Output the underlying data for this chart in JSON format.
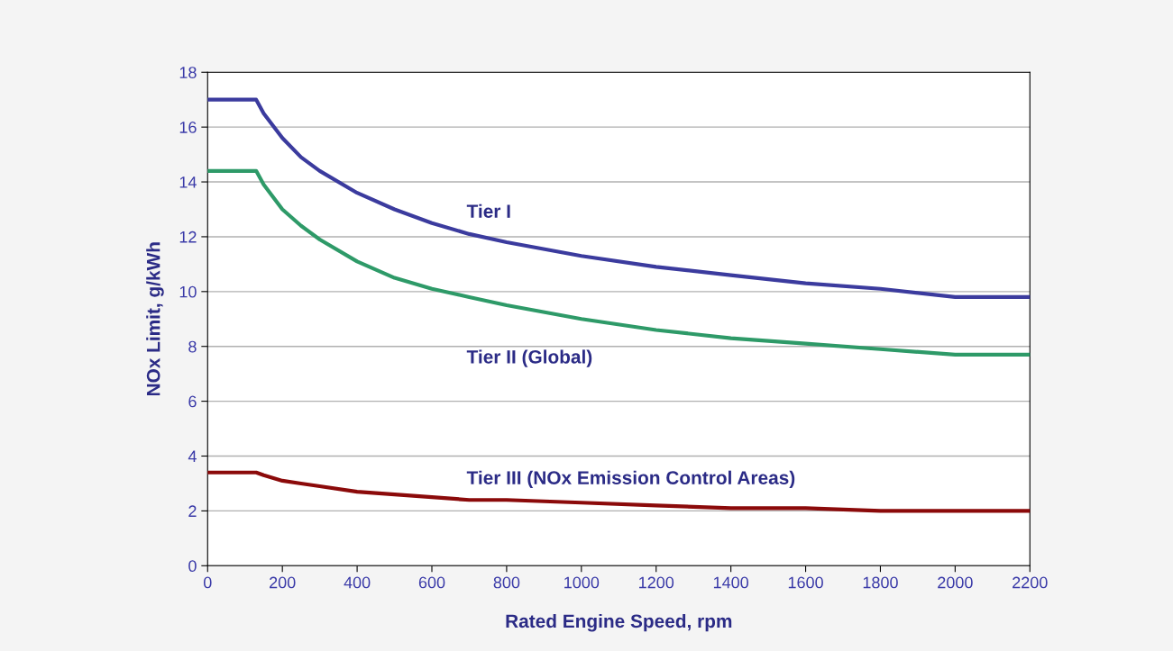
{
  "chart_data": {
    "type": "line",
    "xlabel": "Rated Engine Speed, rpm",
    "ylabel": "NOx Limit, g/kWh",
    "x": [
      0,
      130,
      150,
      200,
      250,
      300,
      400,
      500,
      600,
      700,
      800,
      1000,
      1200,
      1400,
      1600,
      1800,
      2000,
      2200
    ],
    "series": [
      {
        "name": "Tier I",
        "color": "#3b3b9e",
        "values": [
          17.0,
          17.0,
          16.5,
          15.6,
          14.9,
          14.4,
          13.6,
          13.0,
          12.5,
          12.1,
          11.8,
          11.3,
          10.9,
          10.6,
          10.3,
          10.1,
          9.8,
          9.8
        ]
      },
      {
        "name": "Tier II (Global)",
        "color": "#2e9a68",
        "values": [
          14.4,
          14.4,
          13.9,
          13.0,
          12.4,
          11.9,
          11.1,
          10.5,
          10.1,
          9.8,
          9.5,
          9.0,
          8.6,
          8.3,
          8.1,
          7.9,
          7.7,
          7.7
        ]
      },
      {
        "name": "Tier III (NOx Emission Control Areas)",
        "color": "#8b0a0a",
        "values": [
          3.4,
          3.4,
          3.3,
          3.1,
          3.0,
          2.9,
          2.7,
          2.6,
          2.5,
          2.4,
          2.4,
          2.3,
          2.2,
          2.1,
          2.1,
          2.0,
          2.0,
          2.0
        ]
      }
    ],
    "xlim": [
      0,
      2200
    ],
    "xticks": [
      0,
      200,
      400,
      600,
      800,
      1000,
      1200,
      1400,
      1600,
      1800,
      2000,
      2200
    ],
    "ylim": [
      0,
      18
    ],
    "yticks": [
      0,
      2,
      4,
      6,
      8,
      10,
      12,
      14,
      16,
      18
    ],
    "grid": "y",
    "marker": "none",
    "line_style": "solid",
    "legend": false
  }
}
